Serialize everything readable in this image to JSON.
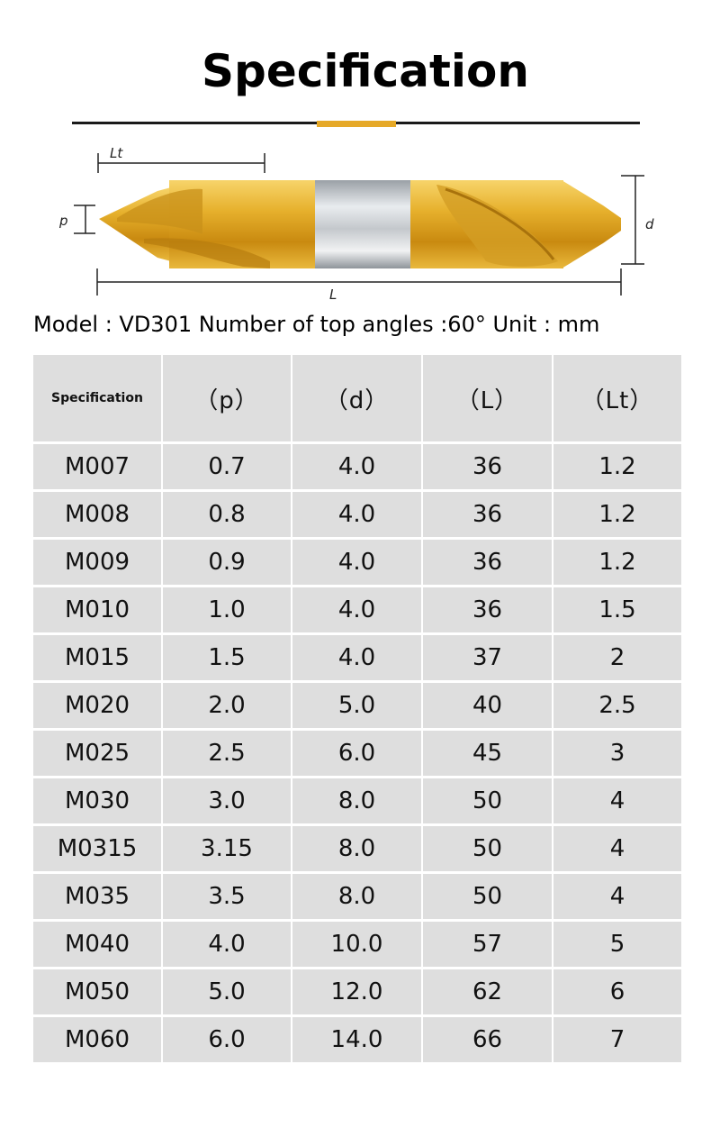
{
  "title": "Specification",
  "colors": {
    "accent": "#e6a928",
    "cell_bg": "#dedede",
    "rule": "#1a1a1a"
  },
  "diagram": {
    "labels": {
      "lt": "Lt",
      "p": "p",
      "d": "d",
      "L": "L"
    }
  },
  "model_line": "Model : VD301 Number of top angles :60° Unit : mm",
  "table": {
    "headers": [
      "Specification",
      "（p）",
      "（d）",
      "（L）",
      "（Lt）"
    ],
    "rows": [
      [
        "M007",
        "0.7",
        "4.0",
        "36",
        "1.2"
      ],
      [
        "M008",
        "0.8",
        "4.0",
        "36",
        "1.2"
      ],
      [
        "M009",
        "0.9",
        "4.0",
        "36",
        "1.2"
      ],
      [
        "M010",
        "1.0",
        "4.0",
        "36",
        "1.5"
      ],
      [
        "M015",
        "1.5",
        "4.0",
        "37",
        "2"
      ],
      [
        "M020",
        "2.0",
        "5.0",
        "40",
        "2.5"
      ],
      [
        "M025",
        "2.5",
        "6.0",
        "45",
        "3"
      ],
      [
        "M030",
        "3.0",
        "8.0",
        "50",
        "4"
      ],
      [
        "M0315",
        "3.15",
        "8.0",
        "50",
        "4"
      ],
      [
        "M035",
        "3.5",
        "8.0",
        "50",
        "4"
      ],
      [
        "M040",
        "4.0",
        "10.0",
        "57",
        "5"
      ],
      [
        "M050",
        "5.0",
        "12.0",
        "62",
        "6"
      ],
      [
        "M060",
        "6.0",
        "14.0",
        "66",
        "7"
      ]
    ]
  }
}
